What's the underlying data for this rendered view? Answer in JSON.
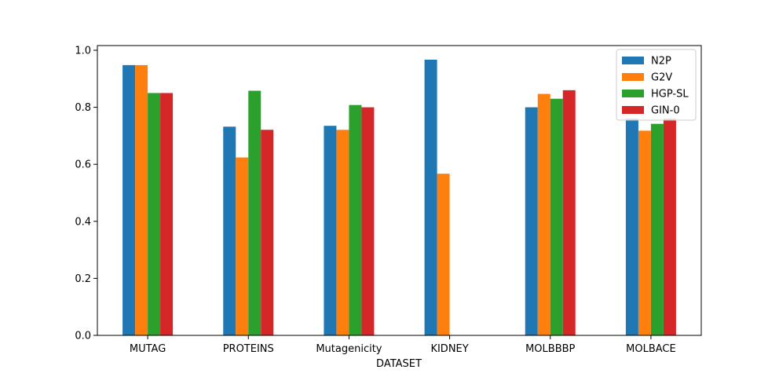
{
  "chart_data": {
    "type": "bar",
    "title": "",
    "xlabel": "DATASET",
    "ylabel": "",
    "ylim": [
      0,
      1.0
    ],
    "yticks": [
      "0.0",
      "0.2",
      "0.4",
      "0.6",
      "0.8",
      "1.0"
    ],
    "categories": [
      "MUTAG",
      "PROTEINS",
      "Mutagenicity",
      "KIDNEY",
      "MOLBBBP",
      "MOLBACE"
    ],
    "series": [
      {
        "name": "N2P",
        "color": "#1f77b4",
        "values": [
          0.948,
          0.732,
          0.735,
          0.967,
          0.8,
          0.76
        ]
      },
      {
        "name": "G2V",
        "color": "#ff7f0e",
        "values": [
          0.948,
          0.624,
          0.721,
          0.567,
          0.847,
          0.718
        ]
      },
      {
        "name": "HGP-SL",
        "color": "#2ca02c",
        "values": [
          0.85,
          0.858,
          0.808,
          null,
          0.83,
          0.742
        ]
      },
      {
        "name": "GIN-0",
        "color": "#d62728",
        "values": [
          0.85,
          0.721,
          0.8,
          null,
          0.86,
          0.76
        ]
      }
    ],
    "legend_position": "top-right",
    "grid": false
  }
}
